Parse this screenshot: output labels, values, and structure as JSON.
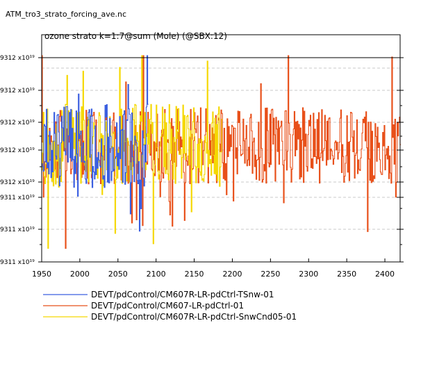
{
  "file_title": "ATM_tro3_strato_forcing_ave.nc",
  "chart_data": {
    "type": "line",
    "title": "ozone strato k=1:7@sum (Mole) (@SBX:12)",
    "xlabel": "",
    "ylabel": "",
    "xlim": [
      1950,
      2420
    ],
    "x_ticks": [
      1950,
      2000,
      2050,
      2100,
      2150,
      2200,
      2250,
      2300,
      2350,
      2400
    ],
    "y_tick_labels": [
      "9312 x10¹⁹",
      "9312 x10¹⁹",
      "9312 x10¹⁹",
      "9312 x10¹⁹",
      "9312 x10¹⁹",
      "9311 x10¹⁹",
      "9311 x10¹⁹",
      "9311 x10¹⁹"
    ],
    "grid": true,
    "legend_position": "bottom",
    "series": [
      {
        "name": "DEVT/pdControl/CM607R-LR-pdCtrl-TSnw-01",
        "color": "#3b5fe0",
        "x_start": 1950,
        "x_end": 2089
      },
      {
        "name": "DEVT/pdControl/CM607-LR-pdCtrl-01",
        "color": "#e8501a",
        "x_start": 1950,
        "x_end": 2420
      },
      {
        "name": "DEVT/pdControl/CM607R-LR-pdCtrl-SnwCnd05-01",
        "color": "#f5d800",
        "x_start": 1950,
        "x_end": 2186
      }
    ]
  }
}
